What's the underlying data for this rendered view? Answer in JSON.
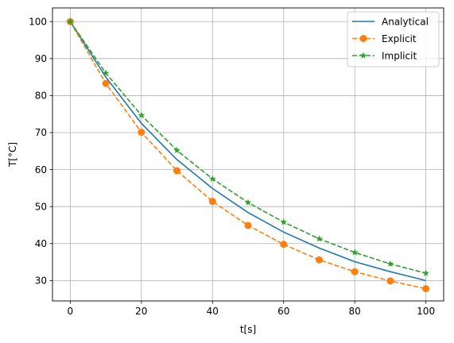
{
  "chart_data": {
    "type": "line",
    "xlabel": "t[s]",
    "ylabel": "T[°C]",
    "xlim": [
      -5,
      105
    ],
    "ylim": [
      24.5,
      103.7
    ],
    "xticks": [
      0,
      20,
      40,
      60,
      80,
      100
    ],
    "yticks": [
      30,
      40,
      50,
      60,
      70,
      80,
      90,
      100
    ],
    "grid": true,
    "legend_position": "top-right",
    "x": [
      0,
      10,
      20,
      30,
      40,
      50,
      60,
      70,
      80,
      90,
      100
    ],
    "series": [
      {
        "name": "Analytical",
        "color": "#1f77b4",
        "linestyle": "solid",
        "marker": "none",
        "values": [
          100,
          85.0,
          72.5,
          62.7,
          54.9,
          48.4,
          43.1,
          38.8,
          35.1,
          32.4,
          30.0
        ]
      },
      {
        "name": "Explicit",
        "color": "#ff7f0e",
        "linestyle": "dashed",
        "marker": "circle",
        "values": [
          100,
          83.3,
          70.1,
          59.7,
          51.4,
          44.9,
          39.8,
          35.6,
          32.4,
          29.9,
          27.8
        ]
      },
      {
        "name": "Implicit",
        "color": "#2ca02c",
        "linestyle": "dashed",
        "marker": "star",
        "values": [
          100,
          86.1,
          74.7,
          65.2,
          57.5,
          51.1,
          45.8,
          41.3,
          37.6,
          34.5,
          32.0
        ]
      }
    ]
  }
}
